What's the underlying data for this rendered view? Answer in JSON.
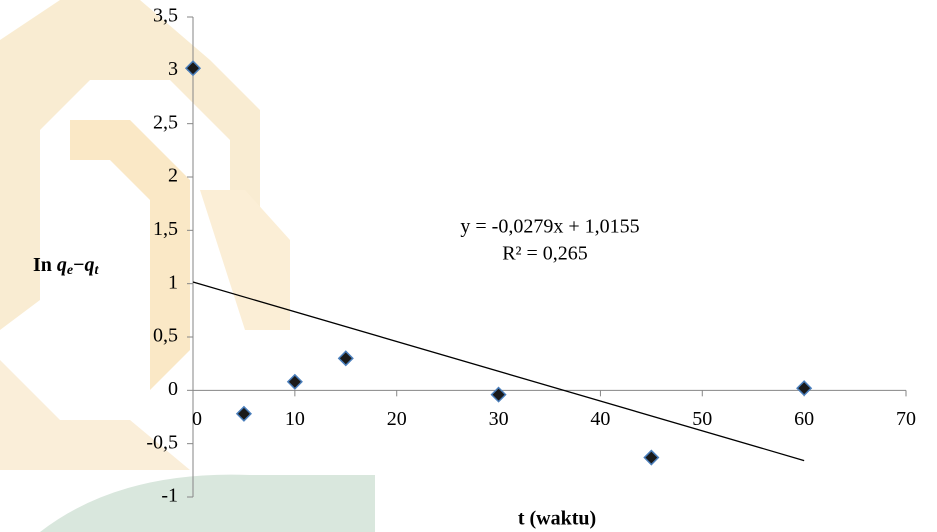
{
  "chart_data": {
    "type": "scatter",
    "x": [
      0,
      5,
      10,
      15,
      30,
      45,
      60
    ],
    "values": [
      3.02,
      -0.22,
      0.08,
      0.3,
      -0.04,
      -0.63,
      0.02
    ],
    "color": "#1a1a1a",
    "xlim": [
      0,
      70
    ],
    "xticks": [
      0,
      10,
      20,
      30,
      40,
      50,
      60,
      70
    ],
    "ylim": [
      -1,
      3.5
    ],
    "yticks": [
      -1,
      {
        "value": -0.5,
        "label": "-0,5"
      },
      0,
      {
        "value": 0.5,
        "label": "0,5"
      },
      1,
      {
        "value": 1.5,
        "label": "1,5"
      },
      2,
      {
        "value": 2.5,
        "label": "2,5"
      },
      3,
      {
        "value": 3.5,
        "label": "3,5"
      }
    ],
    "xlabel": "t (waktu)",
    "ylabel": [
      "In",
      "q",
      "e",
      "−",
      "q",
      "t"
    ],
    "trendline": {
      "slope": -0.0279,
      "intercept": 1.0155,
      "equation": "y = -0,0279x + 1,0155",
      "r2": "R² = 0,265",
      "color": "#000000"
    }
  }
}
